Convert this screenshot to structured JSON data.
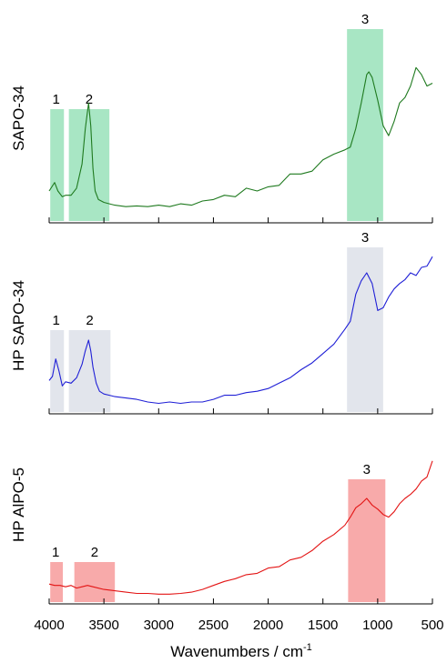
{
  "chart_data": [
    {
      "type": "line",
      "ylabel": "SAPO-34",
      "color": "#1f7a1f",
      "band_color": "#a8e6c4",
      "bands": [
        {
          "label": "1",
          "x0": 3990,
          "x1": 3865
        },
        {
          "label": "2",
          "x0": 3820,
          "x1": 3450
        },
        {
          "label": "3",
          "x0": 1280,
          "x1": 950
        }
      ],
      "x": [
        4000,
        3950,
        3920,
        3880,
        3850,
        3800,
        3750,
        3700,
        3670,
        3640,
        3620,
        3600,
        3580,
        3550,
        3500,
        3450,
        3400,
        3300,
        3200,
        3100,
        3000,
        2900,
        2800,
        2700,
        2600,
        2500,
        2400,
        2300,
        2200,
        2100,
        2000,
        1900,
        1800,
        1700,
        1600,
        1500,
        1400,
        1300,
        1250,
        1200,
        1150,
        1100,
        1080,
        1050,
        1000,
        950,
        900,
        850,
        800,
        750,
        700,
        650,
        600,
        550,
        500
      ],
      "y": [
        0.16,
        0.22,
        0.16,
        0.12,
        0.13,
        0.13,
        0.18,
        0.35,
        0.6,
        0.78,
        0.62,
        0.32,
        0.16,
        0.1,
        0.08,
        0.07,
        0.06,
        0.05,
        0.055,
        0.05,
        0.06,
        0.05,
        0.07,
        0.06,
        0.09,
        0.1,
        0.13,
        0.12,
        0.18,
        0.16,
        0.19,
        0.2,
        0.28,
        0.28,
        0.3,
        0.38,
        0.42,
        0.45,
        0.47,
        0.6,
        0.78,
        0.98,
        1.0,
        0.96,
        0.8,
        0.62,
        0.55,
        0.65,
        0.78,
        0.82,
        0.9,
        1.03,
        0.98,
        0.9,
        0.92
      ]
    },
    {
      "type": "line",
      "ylabel": "HP SAPO-34",
      "color": "#1f1fd6",
      "band_color": "#e2e5ec",
      "bands": [
        {
          "label": "1",
          "x0": 3990,
          "x1": 3865
        },
        {
          "label": "2",
          "x0": 3820,
          "x1": 3440
        },
        {
          "label": "3",
          "x0": 1280,
          "x1": 950
        }
      ],
      "x": [
        4000,
        3970,
        3940,
        3910,
        3880,
        3850,
        3800,
        3750,
        3700,
        3670,
        3640,
        3620,
        3600,
        3570,
        3540,
        3500,
        3450,
        3400,
        3300,
        3200,
        3100,
        3000,
        2900,
        2800,
        2700,
        2600,
        2500,
        2400,
        2300,
        2200,
        2100,
        2000,
        1900,
        1800,
        1700,
        1600,
        1500,
        1400,
        1300,
        1250,
        1200,
        1150,
        1100,
        1050,
        1000,
        950,
        900,
        850,
        800,
        750,
        700,
        650,
        600,
        550,
        500
      ],
      "y": [
        0.18,
        0.21,
        0.34,
        0.25,
        0.14,
        0.17,
        0.16,
        0.2,
        0.3,
        0.4,
        0.48,
        0.4,
        0.28,
        0.16,
        0.1,
        0.08,
        0.07,
        0.06,
        0.05,
        0.04,
        0.02,
        0.01,
        0.02,
        0.01,
        0.02,
        0.02,
        0.04,
        0.07,
        0.07,
        0.09,
        0.1,
        0.12,
        0.16,
        0.2,
        0.26,
        0.31,
        0.38,
        0.45,
        0.56,
        0.62,
        0.82,
        0.92,
        0.98,
        0.9,
        0.7,
        0.72,
        0.8,
        0.86,
        0.9,
        0.93,
        0.98,
        0.96,
        1.02,
        1.03,
        1.1
      ]
    },
    {
      "type": "line",
      "ylabel": "HP AlPO-5",
      "color": "#e31414",
      "band_color": "#f8aaaa",
      "bands": [
        {
          "label": "1",
          "x0": 3990,
          "x1": 3875
        },
        {
          "label": "2",
          "x0": 3770,
          "x1": 3400
        },
        {
          "label": "3",
          "x0": 1270,
          "x1": 930
        }
      ],
      "x": [
        4000,
        3950,
        3900,
        3850,
        3800,
        3750,
        3700,
        3650,
        3600,
        3500,
        3400,
        3300,
        3200,
        3100,
        3000,
        2900,
        2800,
        2700,
        2600,
        2500,
        2400,
        2300,
        2200,
        2100,
        2000,
        1900,
        1800,
        1700,
        1600,
        1500,
        1400,
        1300,
        1250,
        1200,
        1150,
        1100,
        1050,
        1000,
        950,
        900,
        850,
        800,
        750,
        700,
        650,
        600,
        550,
        500
      ],
      "y": [
        0.08,
        0.07,
        0.07,
        0.06,
        0.07,
        0.05,
        0.06,
        0.07,
        0.06,
        0.04,
        0.03,
        0.02,
        0.01,
        0.01,
        0.005,
        0.005,
        0.01,
        0.02,
        0.04,
        0.07,
        0.1,
        0.12,
        0.15,
        0.16,
        0.2,
        0.21,
        0.26,
        0.28,
        0.33,
        0.4,
        0.45,
        0.52,
        0.58,
        0.65,
        0.68,
        0.72,
        0.67,
        0.64,
        0.6,
        0.58,
        0.62,
        0.68,
        0.72,
        0.75,
        0.79,
        0.85,
        0.88,
        1.0
      ]
    }
  ],
  "axis": {
    "xlabel": "Wavenumbers / cm",
    "xlabel_sup": "-1",
    "x_reversed": true,
    "xlim": [
      4000,
      500
    ],
    "xticks": [
      4000,
      3500,
      3000,
      2500,
      2000,
      1500,
      1000,
      500
    ]
  }
}
